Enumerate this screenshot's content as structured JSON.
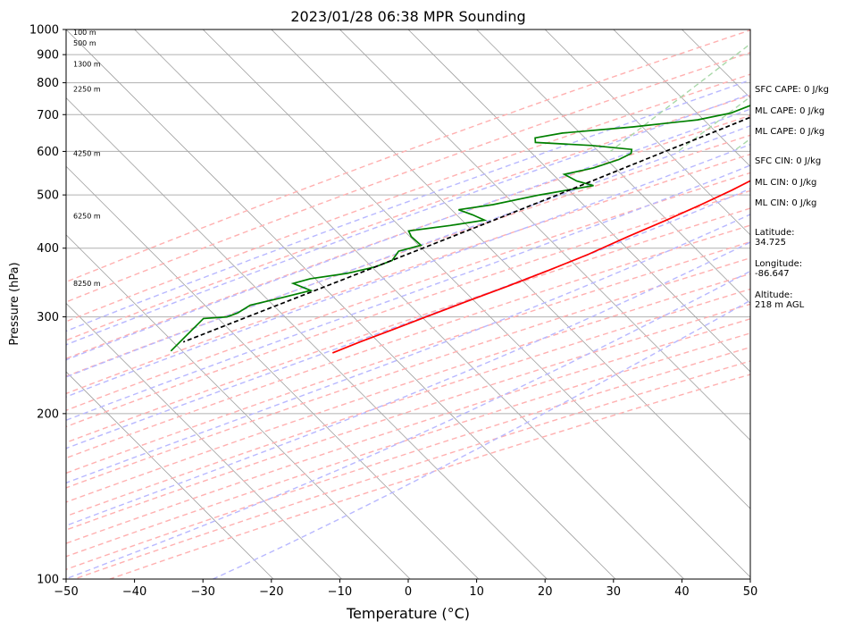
{
  "chart_data": {
    "type": "line",
    "title": "2023/01/28 06:38 MPR Sounding",
    "xlabel": "Temperature (°C)",
    "ylabel": "Pressure (hPa)",
    "xlim": [
      -50,
      50
    ],
    "ylim": [
      1000,
      100
    ],
    "yscale": "log",
    "skew": "45-degree skew-T log-P",
    "grid": true,
    "x_ticks": [
      "−50",
      "−40",
      "−30",
      "−20",
      "−10",
      "0",
      "10",
      "20",
      "30",
      "40",
      "50"
    ],
    "y_ticks": [
      "1000",
      "900",
      "800",
      "700",
      "600",
      "500",
      "400",
      "300",
      "200",
      "100"
    ],
    "height_labels": [
      {
        "text": "100 m",
        "pressure": 988
      },
      {
        "text": "500 m",
        "pressure": 945
      },
      {
        "text": "1300 m",
        "pressure": 865
      },
      {
        "text": "2250 m",
        "pressure": 780
      },
      {
        "text": "4250 m",
        "pressure": 595
      },
      {
        "text": "6250 m",
        "pressure": 458
      },
      {
        "text": "8250 m",
        "pressure": 345
      }
    ],
    "series": [
      {
        "role": "temperature",
        "color": "#ff0000",
        "points": [
          {
            "p": 1000,
            "t": 3.8
          },
          {
            "p": 995,
            "t": 4.9
          },
          {
            "p": 990,
            "t": 6.6
          },
          {
            "p": 985,
            "t": 7.7
          },
          {
            "p": 978,
            "t": 8.4
          },
          {
            "p": 970,
            "t": 8.4
          },
          {
            "p": 960,
            "t": 7.9
          },
          {
            "p": 950,
            "t": 6.8
          },
          {
            "p": 940,
            "t": 5.5
          },
          {
            "p": 925,
            "t": 4.0
          },
          {
            "p": 905,
            "t": 2.8
          },
          {
            "p": 880,
            "t": 2.0
          },
          {
            "p": 855,
            "t": 1.7
          },
          {
            "p": 830,
            "t": 1.4
          },
          {
            "p": 805,
            "t": 1.0
          },
          {
            "p": 775,
            "t": 0.3
          },
          {
            "p": 745,
            "t": -0.5
          },
          {
            "p": 715,
            "t": -1.3
          },
          {
            "p": 690,
            "t": -1.9
          },
          {
            "p": 665,
            "t": -2.5
          },
          {
            "p": 630,
            "t": -3.4
          },
          {
            "p": 600,
            "t": -4.4
          },
          {
            "p": 570,
            "t": -5.8
          },
          {
            "p": 540,
            "t": -7.6
          },
          {
            "p": 510,
            "t": -9.5
          },
          {
            "p": 480,
            "t": -11.9
          },
          {
            "p": 450,
            "t": -14.7
          },
          {
            "p": 420,
            "t": -17.9
          },
          {
            "p": 390,
            "t": -21.1
          },
          {
            "p": 365,
            "t": -24.5
          },
          {
            "p": 340,
            "t": -28.4
          },
          {
            "p": 320,
            "t": -32.0
          },
          {
            "p": 300,
            "t": -35.7
          },
          {
            "p": 285,
            "t": -38.6
          },
          {
            "p": 270,
            "t": -41.7
          },
          {
            "p": 258,
            "t": -44.1
          }
        ]
      },
      {
        "role": "dewpoint",
        "color": "#008000",
        "points": [
          {
            "p": 1000,
            "t": -1.6
          },
          {
            "p": 985,
            "t": -2.7
          },
          {
            "p": 965,
            "t": -3.4
          },
          {
            "p": 950,
            "t": -4.4
          },
          {
            "p": 935,
            "t": -5.5
          },
          {
            "p": 920,
            "t": -6.7
          },
          {
            "p": 905,
            "t": -7.5
          },
          {
            "p": 885,
            "t": -8.8
          },
          {
            "p": 865,
            "t": -11.3
          },
          {
            "p": 848,
            "t": -14.1
          },
          {
            "p": 835,
            "t": -14.8
          },
          {
            "p": 820,
            "t": -14.3
          },
          {
            "p": 805,
            "t": -14.8
          },
          {
            "p": 790,
            "t": -13.2
          },
          {
            "p": 770,
            "t": -14.6
          },
          {
            "p": 755,
            "t": -17.0
          },
          {
            "p": 730,
            "t": -19.0
          },
          {
            "p": 705,
            "t": -20.9
          },
          {
            "p": 685,
            "t": -24.8
          },
          {
            "p": 665,
            "t": -33.2
          },
          {
            "p": 648,
            "t": -42.6
          },
          {
            "p": 635,
            "t": -45.9
          },
          {
            "p": 623,
            "t": -45.2
          },
          {
            "p": 615,
            "t": -36.5
          },
          {
            "p": 605,
            "t": -30.1
          },
          {
            "p": 595,
            "t": -29.6
          },
          {
            "p": 580,
            "t": -30.5
          },
          {
            "p": 560,
            "t": -33.0
          },
          {
            "p": 545,
            "t": -36.3
          },
          {
            "p": 530,
            "t": -33.5
          },
          {
            "p": 520,
            "t": -30.4
          },
          {
            "p": 500,
            "t": -36.9
          },
          {
            "p": 480,
            "t": -42.3
          },
          {
            "p": 470,
            "t": -46.6
          },
          {
            "p": 460,
            "t": -43.8
          },
          {
            "p": 450,
            "t": -41.3
          },
          {
            "p": 440,
            "t": -45.5
          },
          {
            "p": 430,
            "t": -50.8
          },
          {
            "p": 420,
            "t": -49.6
          },
          {
            "p": 405,
            "t": -46.9
          },
          {
            "p": 395,
            "t": -49.3
          },
          {
            "p": 380,
            "t": -48.9
          },
          {
            "p": 370,
            "t": -50.4
          },
          {
            "p": 360,
            "t": -53.6
          },
          {
            "p": 352,
            "t": -58.2
          },
          {
            "p": 345,
            "t": -60.0
          },
          {
            "p": 335,
            "t": -56.4
          },
          {
            "p": 325,
            "t": -59.6
          },
          {
            "p": 315,
            "t": -63.1
          },
          {
            "p": 305,
            "t": -63.8
          },
          {
            "p": 300,
            "t": -64.8
          },
          {
            "p": 298,
            "t": -68.0
          },
          {
            "p": 260,
            "t": -68.0
          }
        ]
      },
      {
        "role": "parcel",
        "color": "#000000",
        "style": "dashed",
        "points": [
          {
            "p": 1000,
            "t": 3.8
          },
          {
            "p": 940,
            "t": -1.3
          },
          {
            "p": 900,
            "t": -4.0
          },
          {
            "p": 850,
            "t": -6.8
          },
          {
            "p": 800,
            "t": -10.0
          },
          {
            "p": 750,
            "t": -13.3
          },
          {
            "p": 700,
            "t": -16.9
          },
          {
            "p": 650,
            "t": -20.7
          },
          {
            "p": 600,
            "t": -24.9
          },
          {
            "p": 550,
            "t": -29.4
          },
          {
            "p": 500,
            "t": -34.3
          },
          {
            "p": 450,
            "t": -39.9
          },
          {
            "p": 400,
            "t": -46.2
          },
          {
            "p": 350,
            "t": -53.4
          },
          {
            "p": 300,
            "t": -61.8
          },
          {
            "p": 270,
            "t": -67.5
          }
        ]
      }
    ],
    "reference_lines": {
      "isotherms_c": [
        -100,
        -90,
        -80,
        -70,
        -60,
        -50,
        -40,
        -30,
        -20,
        -10,
        0,
        10,
        20,
        30,
        40,
        50
      ],
      "dry_adiabats_c": [
        -30,
        -20,
        -10,
        0,
        10,
        20,
        30,
        40,
        50,
        60,
        70,
        80,
        90,
        100,
        110,
        120,
        130,
        140,
        150,
        160,
        170
      ],
      "moist_adiabats_c": [
        -10,
        -5,
        0,
        5,
        10,
        15,
        20,
        25,
        30,
        35,
        40
      ],
      "mixing_ratios_gkg": [
        0.4,
        1,
        2,
        4,
        7,
        10,
        16,
        24,
        32
      ],
      "colors": {
        "isotherm": "#a0a0a0",
        "dry_adiabat": "#ffb0b0",
        "moist_adiabat": "#b8b8ff",
        "mixing_ratio": "#a8d8a8",
        "grid": "#b0b0b0"
      }
    }
  },
  "sidebar": {
    "sfc_cape": "SFC CAPE: 0 J/kg",
    "ml_cape_1": "ML CAPE: 0 J/kg",
    "ml_cape_2": "ML CAPE: 0 J/kg",
    "sfc_cin": "SFC CIN: 0 J/kg",
    "ml_cin_1": "ML CIN: 0 J/kg",
    "ml_cin_2": "ML CIN: 0 J/kg",
    "latitude": "Latitude:\n34.725",
    "longitude": "Longitude:\n-86.647",
    "altitude": "Altitude:\n218 m AGL"
  }
}
